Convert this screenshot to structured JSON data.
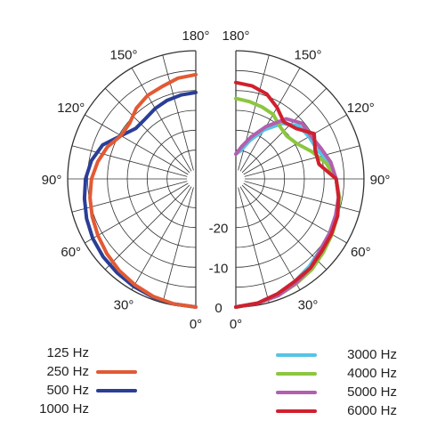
{
  "chart_data": [
    {
      "type": "polar-line",
      "title": "",
      "angle_range_deg": [
        0,
        180
      ],
      "radial_range_db": [
        -30,
        0
      ],
      "radial_ticks": [
        "-20",
        "-10",
        "0"
      ],
      "angle_ticks": [
        "0°",
        "30°",
        "60°",
        "90°",
        "120°",
        "150°",
        "180°"
      ],
      "grid": true,
      "series": [
        {
          "name": "250 Hz",
          "color": "#e25a34",
          "angles": [
            0,
            10,
            20,
            30,
            40,
            50,
            60,
            70,
            80,
            90,
            100,
            110,
            120,
            130,
            140,
            150,
            160,
            170,
            180
          ],
          "values": [
            0,
            -0.3,
            -0.8,
            -1.5,
            -2.2,
            -3,
            -3.8,
            -4.5,
            -5.2,
            -6,
            -7.2,
            -8.6,
            -10.5,
            -10.5,
            -9,
            -8,
            -7.5,
            -6.5,
            -6
          ]
        },
        {
          "name": "500 Hz",
          "color": "#2a3e96",
          "angles": [
            0,
            10,
            20,
            30,
            40,
            50,
            60,
            70,
            80,
            90,
            100,
            110,
            120,
            130,
            140,
            150,
            160,
            170,
            180
          ],
          "values": [
            0,
            -0.3,
            -0.6,
            -1,
            -1.4,
            -1.8,
            -2.3,
            -3,
            -3.8,
            -4.5,
            -5.6,
            -7.3,
            -10.5,
            -12.5,
            -12.5,
            -11.8,
            -11.2,
            -10.8,
            -10.5
          ]
        }
      ]
    },
    {
      "type": "polar-line",
      "title": "",
      "angle_range_deg": [
        0,
        180
      ],
      "radial_range_db": [
        -30,
        0
      ],
      "series": [
        {
          "name": "3000 Hz",
          "color": "#55c4e6",
          "angles": [
            0,
            10,
            20,
            30,
            40,
            50,
            60,
            70,
            80,
            90,
            100,
            110,
            120,
            130,
            140,
            150,
            160,
            170,
            180
          ],
          "values": [
            0,
            -0.5,
            -1.5,
            -2.5,
            -3.5,
            -4.5,
            -5,
            -5.5,
            -6,
            -7,
            -8.5,
            -10.5,
            -11,
            -11.5,
            -14,
            -18,
            -22,
            -25,
            -26
          ]
        },
        {
          "name": "4000 Hz",
          "color": "#8cc63f",
          "angles": [
            0,
            10,
            20,
            30,
            40,
            50,
            60,
            70,
            80,
            90,
            100,
            110,
            120,
            130,
            140,
            150,
            160,
            170,
            180
          ],
          "values": [
            0,
            -0.5,
            -1,
            -1.8,
            -2.5,
            -3.5,
            -4.3,
            -5,
            -5.8,
            -7,
            -9.2,
            -12,
            -14.5,
            -15.5,
            -15,
            -13.5,
            -13,
            -12.5,
            -12
          ]
        },
        {
          "name": "5000 Hz",
          "color": "#b35fae",
          "angles": [
            0,
            10,
            20,
            30,
            40,
            50,
            60,
            70,
            80,
            90,
            100,
            110,
            120,
            130,
            140,
            150,
            160,
            170,
            180
          ],
          "values": [
            0,
            -0.5,
            -1,
            -2,
            -3,
            -4.5,
            -5,
            -5.5,
            -6,
            -7,
            -8,
            -9.5,
            -10.5,
            -10.5,
            -12.5,
            -17,
            -21,
            -24,
            -26
          ]
        },
        {
          "name": "6000 Hz",
          "color": "#d0202e",
          "angles": [
            0,
            10,
            20,
            30,
            40,
            50,
            60,
            70,
            80,
            90,
            100,
            110,
            120,
            130,
            140,
            150,
            160,
            170,
            180
          ],
          "values": [
            0,
            -0.5,
            -1.5,
            -2.5,
            -3,
            -4,
            -4.5,
            -5,
            -6,
            -7,
            -11,
            -11,
            -9.5,
            -12.5,
            -13.5,
            -11.5,
            -9.5,
            -8.5,
            -8
          ]
        }
      ]
    }
  ],
  "legend": {
    "left": [
      {
        "label": "125 Hz",
        "color": ""
      },
      {
        "label": "250 Hz",
        "color": "#e25a34"
      },
      {
        "label": "500 Hz",
        "color": "#2a3e96"
      },
      {
        "label": "1000 Hz",
        "color": ""
      }
    ],
    "right": [
      {
        "label": "3000 Hz",
        "color": "#55c4e6"
      },
      {
        "label": "4000 Hz",
        "color": "#8cc63f"
      },
      {
        "label": "5000 Hz",
        "color": "#b35fae"
      },
      {
        "label": "6000 Hz",
        "color": "#d0202e"
      }
    ]
  }
}
